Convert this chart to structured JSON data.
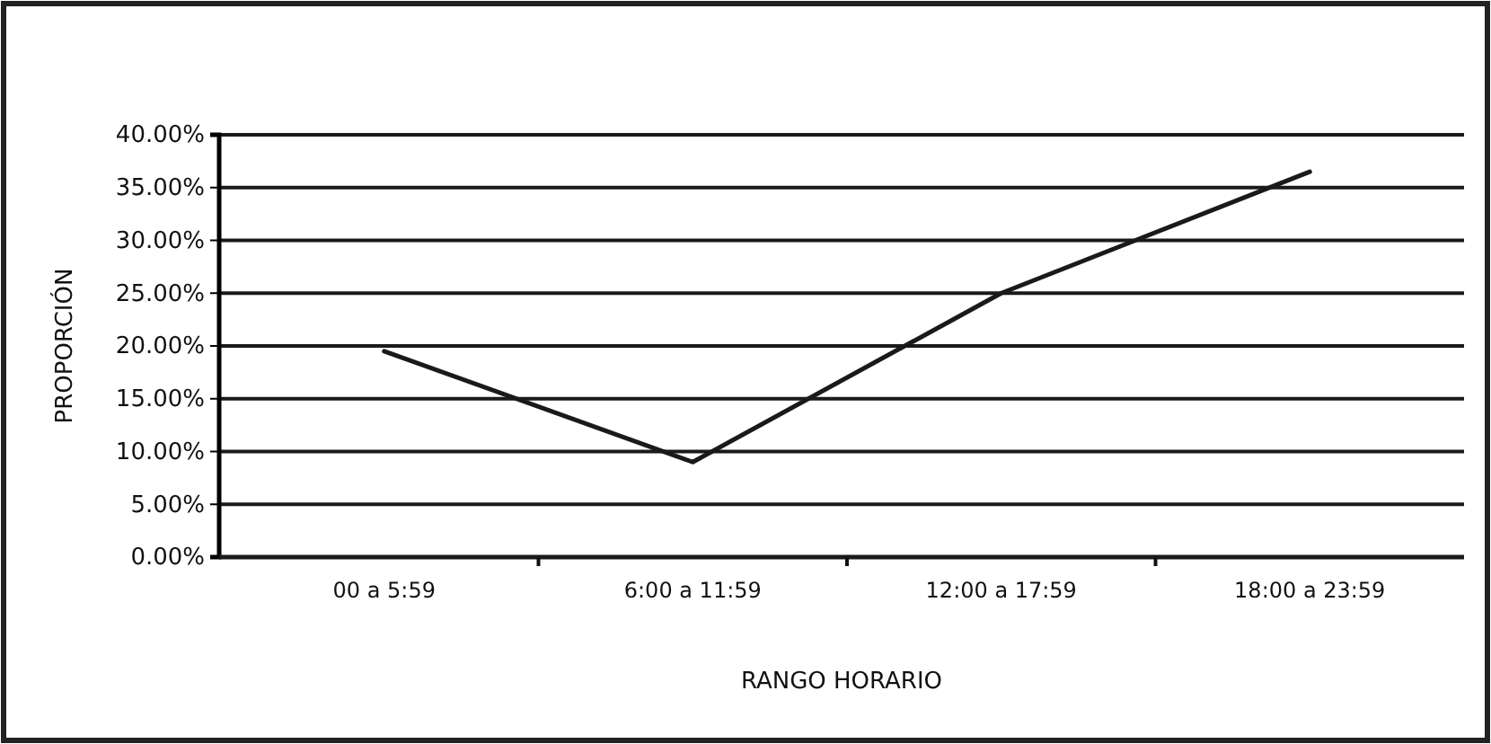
{
  "chart_data": {
    "type": "line",
    "xlabel": "RANGO HORARIO",
    "ylabel": "PROPORCIÓN",
    "categories": [
      "00 a 5:59",
      "6:00 a 11:59",
      "12:00 a 17:59",
      "18:00 a 23:59"
    ],
    "series": [
      {
        "color": "#1a1a1a",
        "values": [
          19.5,
          9,
          25,
          36.5
        ]
      }
    ],
    "ylim": [
      0,
      40
    ],
    "yticks": [
      {
        "value": 0,
        "label": "0.00%"
      },
      {
        "value": 5,
        "label": "5.00%"
      },
      {
        "value": 10,
        "label": "10.00%"
      },
      {
        "value": 15,
        "label": "15.00%"
      },
      {
        "value": 20,
        "label": "20.00%"
      },
      {
        "value": 25,
        "label": "25.00%"
      },
      {
        "value": 30,
        "label": "30.00%"
      },
      {
        "value": 35,
        "label": "35.00%"
      },
      {
        "value": 40,
        "label": "40.00%"
      }
    ],
    "grid": "y",
    "marker": "none",
    "line_style": "solid"
  }
}
